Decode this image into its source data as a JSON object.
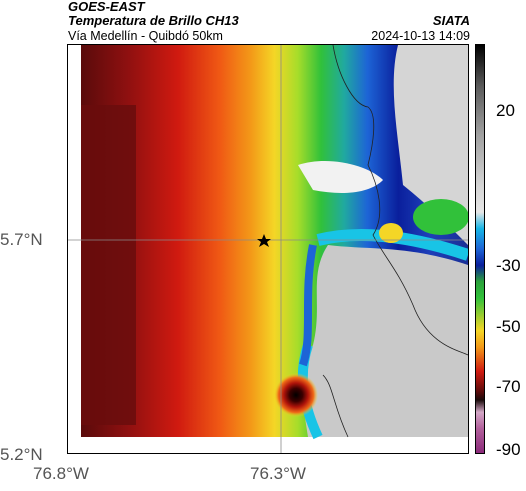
{
  "header": {
    "satellite": "GOES-EAST",
    "product": "Temperatura de Brillo CH13",
    "region": "Vía Medellín - Quibdó 50km",
    "organization": "SIATA",
    "datetime": "2024-10-13 14:09"
  },
  "axes": {
    "lat_ticks": [
      "5.7°N",
      "5.2°N"
    ],
    "lon_ticks": [
      "76.8°W",
      "76.3°W"
    ]
  },
  "colorbar": {
    "labels": [
      "20",
      "-30",
      "-50",
      "-70",
      "-90"
    ]
  },
  "map": {
    "marker_icon": "star-icon"
  }
}
